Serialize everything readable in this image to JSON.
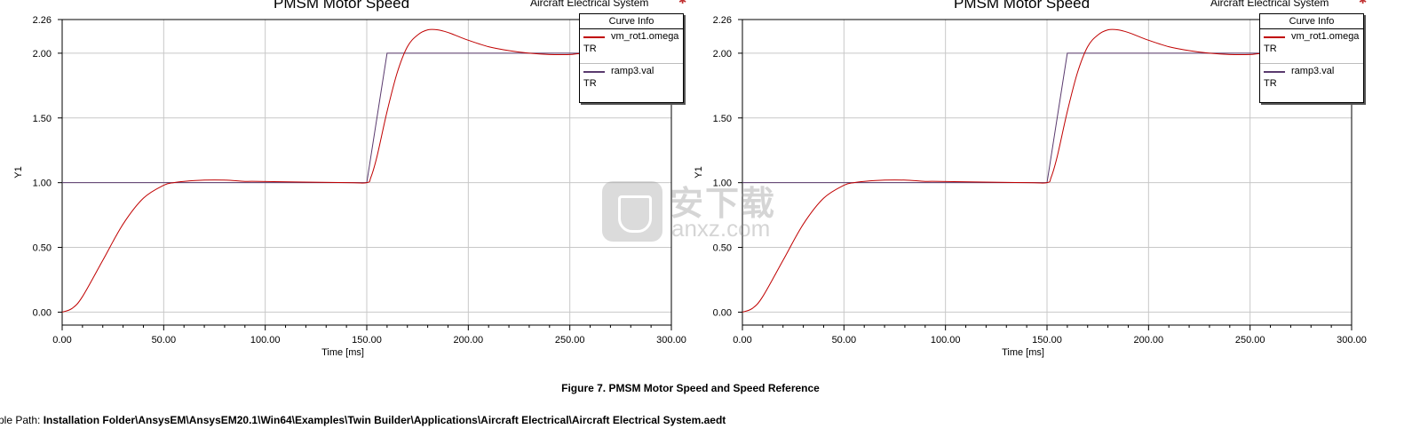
{
  "chart_data": [
    {
      "type": "line",
      "title": "PMSM Motor Speed",
      "subtitle": "Aircraft Electrical System",
      "xlabel": "Time [ms]",
      "ylabel": "Y1",
      "xlim": [
        0,
        300
      ],
      "ylim": [
        -0.1,
        2.26
      ],
      "x_ticks": [
        "0.00",
        "50.00",
        "100.00",
        "150.00",
        "200.00",
        "250.00",
        "300.00"
      ],
      "y_ticks": [
        "0.00",
        "0.50",
        "1.00",
        "1.50",
        "2.00",
        "2.26"
      ],
      "grid": true,
      "legend": {
        "title": "Curve Info",
        "position": "top-right",
        "entries": [
          {
            "name": "vm_rot1.omega",
            "unit": "TR",
            "color": "#c00000"
          },
          {
            "name": "ramp3.val",
            "unit": "TR",
            "color": "#5a3a6e"
          }
        ]
      },
      "series": [
        {
          "name": "vm_rot1.omega",
          "color": "#c00000",
          "x": [
            0,
            5,
            10,
            20,
            30,
            40,
            50,
            55,
            60,
            70,
            80,
            90,
            97,
            140,
            150,
            152,
            155,
            160,
            165,
            170,
            175,
            180,
            185,
            190,
            195,
            200,
            210,
            220,
            230,
            240,
            250,
            260,
            300
          ],
          "y": [
            0,
            0.03,
            0.12,
            0.4,
            0.68,
            0.88,
            0.98,
            1.0,
            1.01,
            1.02,
            1.02,
            1.01,
            1.01,
            1.0,
            1.0,
            1.04,
            1.2,
            1.55,
            1.85,
            2.05,
            2.14,
            2.18,
            2.18,
            2.16,
            2.13,
            2.1,
            2.05,
            2.02,
            2.0,
            1.99,
            1.99,
            2.0,
            2.0
          ]
        },
        {
          "name": "ramp3.val",
          "color": "#5a3a6e",
          "x": [
            0,
            150,
            160,
            300
          ],
          "y": [
            1.0,
            1.0,
            2.0,
            2.0
          ]
        }
      ]
    },
    {
      "type": "line",
      "title": "PMSM Motor Speed",
      "subtitle": "Aircraft Electrical System",
      "xlabel": "Time [ms]",
      "ylabel": "Y1",
      "xlim": [
        0,
        300
      ],
      "ylim": [
        -0.1,
        2.26
      ],
      "x_ticks": [
        "0.00",
        "50.00",
        "100.00",
        "150.00",
        "200.00",
        "250.00",
        "300.00"
      ],
      "y_ticks": [
        "0.00",
        "0.50",
        "1.00",
        "1.50",
        "2.00",
        "2.26"
      ],
      "grid": true,
      "legend": {
        "title": "Curve Info",
        "position": "top-right",
        "entries": [
          {
            "name": "vm_rot1.omega",
            "unit": "TR",
            "color": "#c00000"
          },
          {
            "name": "ramp3.val",
            "unit": "TR",
            "color": "#5a3a6e"
          }
        ]
      },
      "series": [
        {
          "name": "vm_rot1.omega",
          "color": "#c00000",
          "x": [
            0,
            5,
            10,
            20,
            30,
            40,
            50,
            55,
            60,
            70,
            80,
            90,
            97,
            140,
            150,
            152,
            155,
            160,
            165,
            170,
            175,
            180,
            185,
            190,
            195,
            200,
            210,
            220,
            230,
            240,
            250,
            260,
            300
          ],
          "y": [
            0,
            0.03,
            0.12,
            0.4,
            0.68,
            0.88,
            0.98,
            1.0,
            1.01,
            1.02,
            1.02,
            1.01,
            1.01,
            1.0,
            1.0,
            1.04,
            1.2,
            1.55,
            1.85,
            2.05,
            2.14,
            2.18,
            2.18,
            2.16,
            2.13,
            2.1,
            2.05,
            2.02,
            2.0,
            1.99,
            1.99,
            2.0,
            2.0
          ]
        },
        {
          "name": "ramp3.val",
          "color": "#5a3a6e",
          "x": [
            0,
            150,
            160,
            300
          ],
          "y": [
            1.0,
            1.0,
            2.0,
            2.0
          ]
        }
      ]
    }
  ],
  "figure_caption": "Figure 7. PMSM Motor Speed and Speed Reference",
  "example_path": {
    "prefix": "mple Path: ",
    "path": "Installation Folder\\AnsysEM\\AnsysEM20.1\\Win64\\Examples\\Twin Builder\\Applications\\Aircraft Electrical\\Aircraft Electrical System.aedt"
  },
  "watermark": {
    "text": "安下载",
    "url": "anxz.com"
  }
}
